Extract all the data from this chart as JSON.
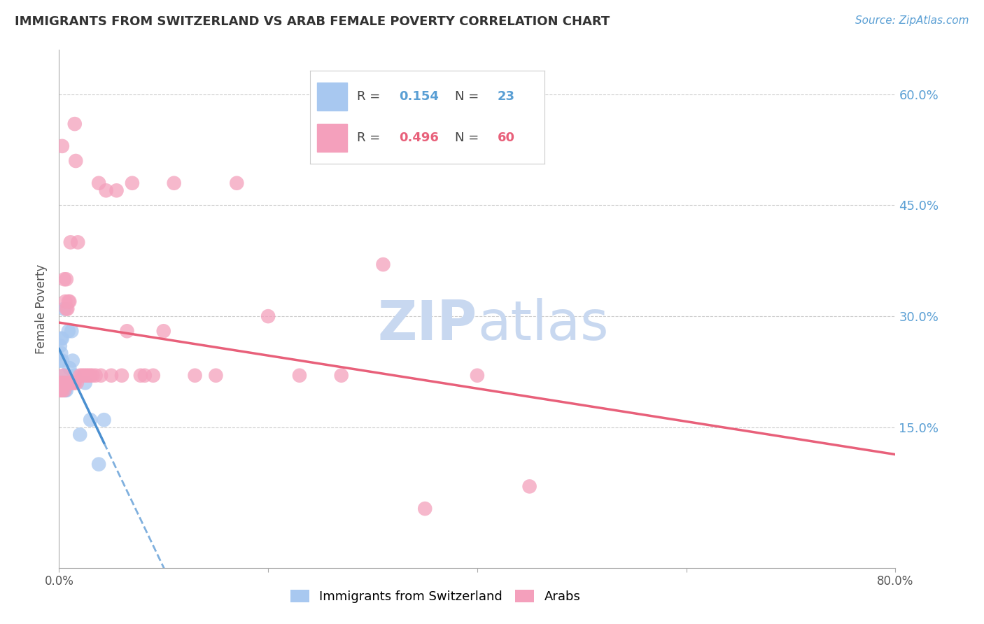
{
  "title": "IMMIGRANTS FROM SWITZERLAND VS ARAB FEMALE POVERTY CORRELATION CHART",
  "source": "Source: ZipAtlas.com",
  "xlim": [
    0.0,
    0.8
  ],
  "ylim": [
    -0.04,
    0.66
  ],
  "series1_label": "Immigrants from Switzerland",
  "series1_color": "#A8C8F0",
  "series1_line_color": "#4A8FD0",
  "series1_R": "0.154",
  "series1_N": "23",
  "series2_label": "Arabs",
  "series2_color": "#F4A0BC",
  "series2_line_color": "#E8607A",
  "series2_R": "0.496",
  "series2_N": "60",
  "watermark": "ZIPatlas",
  "watermark_color": "#C8D8F0",
  "grid_color": "#CCCCCC",
  "right_tick_color": "#5A9FD4",
  "series1_x": [
    0.001,
    0.001,
    0.002,
    0.002,
    0.003,
    0.003,
    0.004,
    0.004,
    0.005,
    0.005,
    0.006,
    0.007,
    0.008,
    0.009,
    0.01,
    0.012,
    0.013,
    0.015,
    0.02,
    0.025,
    0.03,
    0.038,
    0.043
  ],
  "series1_y": [
    0.24,
    0.26,
    0.25,
    0.27,
    0.24,
    0.27,
    0.2,
    0.21,
    0.22,
    0.31,
    0.2,
    0.2,
    0.21,
    0.28,
    0.23,
    0.28,
    0.24,
    0.22,
    0.14,
    0.21,
    0.16,
    0.1,
    0.16
  ],
  "series2_x": [
    0.001,
    0.001,
    0.002,
    0.002,
    0.003,
    0.003,
    0.004,
    0.004,
    0.005,
    0.005,
    0.006,
    0.006,
    0.007,
    0.007,
    0.008,
    0.008,
    0.009,
    0.009,
    0.01,
    0.01,
    0.011,
    0.012,
    0.013,
    0.014,
    0.015,
    0.015,
    0.016,
    0.017,
    0.018,
    0.02,
    0.022,
    0.024,
    0.026,
    0.028,
    0.03,
    0.032,
    0.035,
    0.038,
    0.04,
    0.045,
    0.05,
    0.055,
    0.06,
    0.065,
    0.07,
    0.078,
    0.082,
    0.09,
    0.1,
    0.11,
    0.13,
    0.15,
    0.17,
    0.2,
    0.23,
    0.27,
    0.31,
    0.35,
    0.4,
    0.45
  ],
  "series2_y": [
    0.2,
    0.21,
    0.2,
    0.21,
    0.2,
    0.53,
    0.21,
    0.22,
    0.2,
    0.35,
    0.21,
    0.32,
    0.31,
    0.35,
    0.21,
    0.31,
    0.21,
    0.32,
    0.21,
    0.32,
    0.4,
    0.21,
    0.21,
    0.21,
    0.21,
    0.56,
    0.51,
    0.21,
    0.4,
    0.22,
    0.22,
    0.22,
    0.22,
    0.22,
    0.22,
    0.22,
    0.22,
    0.48,
    0.22,
    0.47,
    0.22,
    0.47,
    0.22,
    0.28,
    0.48,
    0.22,
    0.22,
    0.22,
    0.28,
    0.48,
    0.22,
    0.22,
    0.48,
    0.3,
    0.22,
    0.22,
    0.37,
    0.04,
    0.22,
    0.07
  ]
}
